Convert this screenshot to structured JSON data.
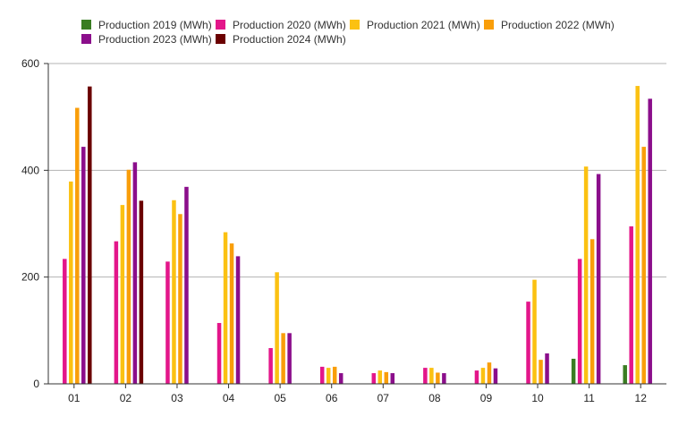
{
  "chart_data": {
    "type": "bar",
    "categories": [
      "01",
      "02",
      "03",
      "04",
      "05",
      "06",
      "07",
      "08",
      "09",
      "10",
      "11",
      "12"
    ],
    "ylim": [
      0,
      600
    ],
    "yticks": [
      0,
      200,
      400,
      600
    ],
    "grid": true,
    "legend_position": "top-center",
    "series": [
      {
        "name": "Production 2019 (MWh)",
        "color": "#3a7d22",
        "values": [
          null,
          null,
          null,
          null,
          null,
          null,
          null,
          null,
          null,
          null,
          47,
          35
        ]
      },
      {
        "name": "Production 2020 (MWh)",
        "color": "#e3168a",
        "values": [
          234,
          267,
          229,
          114,
          67,
          32,
          20,
          30,
          25,
          154,
          234,
          295
        ]
      },
      {
        "name": "Production 2021 (MWh)",
        "color": "#fbc112",
        "values": [
          379,
          335,
          344,
          284,
          209,
          30,
          25,
          30,
          30,
          195,
          407,
          558
        ]
      },
      {
        "name": "Production 2022 (MWh)",
        "color": "#f99e0a",
        "values": [
          517,
          401,
          318,
          263,
          95,
          32,
          22,
          21,
          40,
          45,
          271,
          444
        ]
      },
      {
        "name": "Production 2023 (MWh)",
        "color": "#8b0e8b",
        "values": [
          444,
          415,
          369,
          239,
          95,
          20,
          20,
          20,
          29,
          57,
          393,
          534
        ]
      },
      {
        "name": "Production 2024 (MWh)",
        "color": "#6b0000",
        "values": [
          557,
          343,
          null,
          null,
          null,
          null,
          null,
          null,
          null,
          null,
          null,
          null
        ]
      }
    ]
  }
}
